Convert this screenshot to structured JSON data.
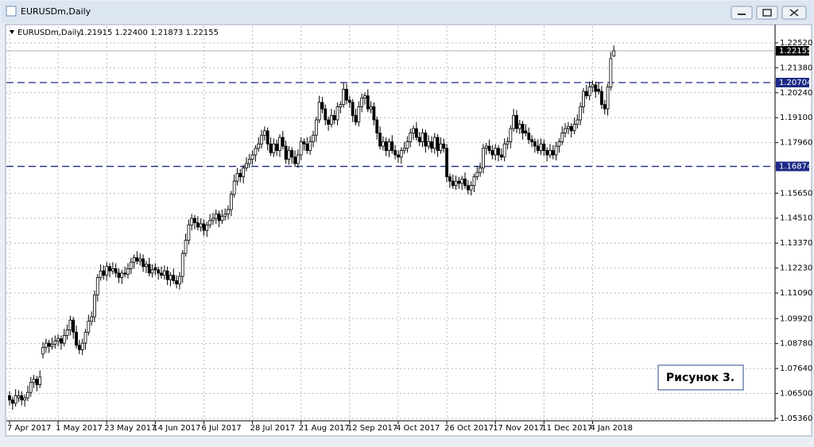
{
  "symbol": "EURUSDm,Daily",
  "ohlc_text": "1.21915 1.22400 1.21873 1.22155",
  "annotation": "Рисунок 3.",
  "chart_data": {
    "type": "candlestick",
    "up_color": "#ffffff",
    "down_color": "#000000",
    "outline_color": "#000000",
    "grid": true,
    "ylim": [
      1.0525,
      1.2328
    ],
    "yticks": [
      {
        "value": 1.2252,
        "label": "1.22520"
      },
      {
        "value": 1.2138,
        "label": "1.21380"
      },
      {
        "value": 1.2024,
        "label": "1.20240"
      },
      {
        "value": 1.191,
        "label": "1.19100"
      },
      {
        "value": 1.1796,
        "label": "1.17960"
      },
      {
        "value": 1.1565,
        "label": "1.15650"
      },
      {
        "value": 1.1451,
        "label": "1.14510"
      },
      {
        "value": 1.1337,
        "label": "1.13370"
      },
      {
        "value": 1.1223,
        "label": "1.12230"
      },
      {
        "value": 1.1109,
        "label": "1.11090"
      },
      {
        "value": 1.0992,
        "label": "1.09920"
      },
      {
        "value": 1.0878,
        "label": "1.08780"
      },
      {
        "value": 1.0764,
        "label": "1.07640"
      },
      {
        "value": 1.065,
        "label": "1.06500"
      },
      {
        "value": 1.0536,
        "label": "1.05360"
      }
    ],
    "levels": [
      {
        "value": 1.20704,
        "color": "#1c2a86"
      },
      {
        "value": 1.16874,
        "color": "#1c2a86"
      }
    ],
    "current_price_color": "#b0b0b0",
    "categories": [
      "7 Apr 2017",
      null,
      null,
      null,
      null,
      null,
      null,
      null,
      null,
      null,
      null,
      null,
      null,
      null,
      null,
      null,
      "1 May 2017",
      null,
      null,
      null,
      null,
      null,
      null,
      null,
      null,
      null,
      null,
      null,
      null,
      null,
      null,
      null,
      "23 May 2017",
      null,
      null,
      null,
      null,
      null,
      null,
      null,
      null,
      null,
      null,
      null,
      null,
      null,
      null,
      null,
      "14 Jun 2017",
      null,
      null,
      null,
      null,
      null,
      null,
      null,
      null,
      null,
      null,
      null,
      null,
      null,
      null,
      null,
      "6 Jul 2017",
      null,
      null,
      null,
      null,
      null,
      null,
      null,
      null,
      null,
      null,
      null,
      null,
      null,
      null,
      null,
      "28 Jul 2017",
      null,
      null,
      null,
      null,
      null,
      null,
      null,
      null,
      null,
      null,
      null,
      null,
      null,
      null,
      null,
      "21 Aug 2017",
      null,
      null,
      null,
      null,
      null,
      null,
      null,
      null,
      null,
      null,
      null,
      null,
      null,
      null,
      null,
      "12 Sep 2017",
      null,
      null,
      null,
      null,
      null,
      null,
      null,
      null,
      null,
      null,
      null,
      null,
      null,
      null,
      null,
      "4 Oct 2017",
      null,
      null,
      null,
      null,
      null,
      null,
      null,
      null,
      null,
      null,
      null,
      null,
      null,
      null,
      null,
      "26 Oct 2017",
      null,
      null,
      null,
      null,
      null,
      null,
      null,
      null,
      null,
      null,
      null,
      null,
      null,
      null,
      null,
      "17 Nov 2017",
      null,
      null,
      null,
      null,
      null,
      null,
      null,
      null,
      null,
      null,
      null,
      null,
      null,
      null,
      null,
      "11 Dec 2017",
      null,
      null,
      null,
      null,
      null,
      null,
      null,
      null,
      null,
      null,
      null,
      null,
      null,
      null,
      null,
      "4 Jan 2018",
      null,
      null,
      null,
      null,
      null,
      null,
      null
    ],
    "ohlc": [
      [
        1.064,
        1.066,
        1.0595,
        1.062
      ],
      [
        1.062,
        1.0635,
        1.0575,
        1.0605
      ],
      [
        1.0605,
        1.067,
        1.059,
        1.064
      ],
      [
        1.063,
        1.0665,
        1.061,
        1.064
      ],
      [
        1.064,
        1.066,
        1.0595,
        1.062
      ],
      [
        1.062,
        1.0645,
        1.059,
        1.063
      ],
      [
        1.063,
        1.0685,
        1.0615,
        1.0655
      ],
      [
        1.0655,
        1.0725,
        1.0635,
        1.07
      ],
      [
        1.07,
        1.0735,
        1.0675,
        1.0715
      ],
      [
        1.0715,
        1.073,
        1.066,
        1.069
      ],
      [
        1.069,
        1.0755,
        1.0675,
        1.0725
      ],
      [
        1.083,
        1.0885,
        1.081,
        1.086
      ],
      [
        1.086,
        1.09,
        1.0835,
        1.088
      ],
      [
        1.088,
        1.0895,
        1.0835,
        1.0865
      ],
      [
        1.0865,
        1.0905,
        1.085,
        1.0875
      ],
      [
        1.0875,
        1.0915,
        1.0855,
        1.089
      ],
      [
        1.089,
        1.092,
        1.0865,
        1.09
      ],
      [
        1.09,
        1.0915,
        1.085,
        1.088
      ],
      [
        1.088,
        1.0945,
        1.0865,
        1.0915
      ],
      [
        1.0915,
        1.0965,
        1.0895,
        1.094
      ],
      [
        1.094,
        1.1005,
        1.0915,
        1.0985
      ],
      [
        1.0985,
        1.1,
        1.09,
        1.093
      ],
      [
        1.093,
        1.096,
        1.0855,
        1.087
      ],
      [
        1.087,
        1.0895,
        1.083,
        1.085
      ],
      [
        1.085,
        1.09,
        1.0825,
        1.088
      ],
      [
        1.088,
        1.0945,
        1.085,
        1.093
      ],
      [
        1.093,
        1.101,
        1.0915,
        1.098
      ],
      [
        1.098,
        1.1025,
        1.096,
        1.1
      ],
      [
        1.1,
        1.112,
        1.0975,
        1.11
      ],
      [
        1.11,
        1.1195,
        1.107,
        1.118
      ],
      [
        1.118,
        1.124,
        1.1165,
        1.121
      ],
      [
        1.121,
        1.1235,
        1.117,
        1.119
      ],
      [
        1.119,
        1.125,
        1.1165,
        1.123
      ],
      [
        1.123,
        1.1245,
        1.118,
        1.121
      ],
      [
        1.121,
        1.125,
        1.1195,
        1.122
      ],
      [
        1.122,
        1.1245,
        1.118,
        1.12
      ],
      [
        1.12,
        1.122,
        1.1155,
        1.118
      ],
      [
        1.118,
        1.1215,
        1.115,
        1.12
      ],
      [
        1.12,
        1.123,
        1.118,
        1.1195
      ],
      [
        1.1195,
        1.1245,
        1.1175,
        1.122
      ],
      [
        1.122,
        1.127,
        1.1195,
        1.125
      ],
      [
        1.125,
        1.1285,
        1.122,
        1.127
      ],
      [
        1.127,
        1.13,
        1.124,
        1.1255
      ],
      [
        1.1255,
        1.129,
        1.1235,
        1.1265
      ],
      [
        1.1265,
        1.1285,
        1.1205,
        1.123
      ],
      [
        1.123,
        1.1255,
        1.12,
        1.124
      ],
      [
        1.124,
        1.127,
        1.1185,
        1.12
      ],
      [
        1.12,
        1.124,
        1.118,
        1.1215
      ],
      [
        1.1225,
        1.1245,
        1.119,
        1.1215
      ],
      [
        1.1215,
        1.123,
        1.117,
        1.12
      ],
      [
        1.12,
        1.123,
        1.1175,
        1.119
      ],
      [
        1.119,
        1.1235,
        1.117,
        1.121
      ],
      [
        1.121,
        1.123,
        1.1145,
        1.117
      ],
      [
        1.117,
        1.1205,
        1.114,
        1.119
      ],
      [
        1.119,
        1.122,
        1.115,
        1.1165
      ],
      [
        1.1165,
        1.119,
        1.113,
        1.115
      ],
      [
        1.115,
        1.1205,
        1.1125,
        1.1185
      ],
      [
        1.1185,
        1.1305,
        1.1155,
        1.129
      ],
      [
        1.129,
        1.138,
        1.1275,
        1.135
      ],
      [
        1.135,
        1.1445,
        1.133,
        1.142
      ],
      [
        1.142,
        1.147,
        1.1395,
        1.145
      ],
      [
        1.145,
        1.1465,
        1.14,
        1.143
      ],
      [
        1.143,
        1.146,
        1.1395,
        1.141
      ],
      [
        1.141,
        1.145,
        1.139,
        1.1425
      ],
      [
        1.1425,
        1.1445,
        1.137,
        1.1395
      ],
      [
        1.1395,
        1.1435,
        1.1365,
        1.142
      ],
      [
        1.142,
        1.147,
        1.1405,
        1.144
      ],
      [
        1.144,
        1.1475,
        1.142,
        1.145
      ],
      [
        1.145,
        1.149,
        1.1425,
        1.147
      ],
      [
        1.147,
        1.1485,
        1.141,
        1.144
      ],
      [
        1.144,
        1.149,
        1.1425,
        1.146
      ],
      [
        1.146,
        1.1495,
        1.144,
        1.147
      ],
      [
        1.147,
        1.151,
        1.1445,
        1.149
      ],
      [
        1.149,
        1.1575,
        1.146,
        1.156
      ],
      [
        1.156,
        1.165,
        1.1545,
        1.162
      ],
      [
        1.162,
        1.168,
        1.16,
        1.1655
      ],
      [
        1.1655,
        1.1675,
        1.1615,
        1.164
      ],
      [
        1.164,
        1.1695,
        1.161,
        1.168
      ],
      [
        1.168,
        1.173,
        1.1665,
        1.17
      ],
      [
        1.17,
        1.1745,
        1.168,
        1.172
      ],
      [
        1.172,
        1.176,
        1.1695,
        1.174
      ],
      [
        1.174,
        1.1785,
        1.171,
        1.177
      ],
      [
        1.177,
        1.182,
        1.1755,
        1.179
      ],
      [
        1.179,
        1.1855,
        1.177,
        1.183
      ],
      [
        1.183,
        1.187,
        1.1805,
        1.185
      ],
      [
        1.185,
        1.1865,
        1.176,
        1.179
      ],
      [
        1.179,
        1.182,
        1.1735,
        1.175
      ],
      [
        1.175,
        1.1815,
        1.173,
        1.179
      ],
      [
        1.179,
        1.181,
        1.1735,
        1.176
      ],
      [
        1.176,
        1.1835,
        1.173,
        1.182
      ],
      [
        1.182,
        1.185,
        1.1765,
        1.178
      ],
      [
        1.178,
        1.1805,
        1.17,
        1.172
      ],
      [
        1.172,
        1.178,
        1.1695,
        1.176
      ],
      [
        1.176,
        1.1775,
        1.17,
        1.173
      ],
      [
        1.173,
        1.176,
        1.1685,
        1.17
      ],
      [
        1.17,
        1.1765,
        1.168,
        1.174
      ],
      [
        1.174,
        1.182,
        1.1715,
        1.18
      ],
      [
        1.18,
        1.1815,
        1.176,
        1.179
      ],
      [
        1.179,
        1.182,
        1.1745,
        1.176
      ],
      [
        1.176,
        1.1825,
        1.174,
        1.18
      ],
      [
        1.18,
        1.185,
        1.1775,
        1.183
      ],
      [
        1.183,
        1.1915,
        1.18,
        1.19
      ],
      [
        1.19,
        1.201,
        1.1885,
        1.198
      ],
      [
        1.198,
        1.2005,
        1.193,
        1.195
      ],
      [
        1.195,
        1.197,
        1.1875,
        1.19
      ],
      [
        1.19,
        1.1915,
        1.185,
        1.188
      ],
      [
        1.188,
        1.195,
        1.1865,
        1.192
      ],
      [
        1.192,
        1.1945,
        1.188,
        1.19
      ],
      [
        1.19,
        1.198,
        1.1875,
        1.196
      ],
      [
        1.196,
        1.1985,
        1.193,
        1.197
      ],
      [
        1.197,
        1.207,
        1.1955,
        1.204
      ],
      [
        1.204,
        1.2065,
        1.197,
        1.199
      ],
      [
        1.199,
        1.201,
        1.1955,
        1.198
      ],
      [
        1.198,
        1.1995,
        1.189,
        1.192
      ],
      [
        1.192,
        1.195,
        1.1875,
        1.189
      ],
      [
        1.189,
        1.1985,
        1.187,
        1.196
      ],
      [
        1.196,
        1.202,
        1.1935,
        1.2
      ],
      [
        1.2,
        1.2025,
        1.197,
        1.201
      ],
      [
        1.201,
        1.204,
        1.1935,
        1.195
      ],
      [
        1.195,
        1.1985,
        1.193,
        1.196
      ],
      [
        1.196,
        1.198,
        1.1875,
        1.19
      ],
      [
        1.19,
        1.1915,
        1.181,
        1.184
      ],
      [
        1.184,
        1.187,
        1.1765,
        1.178
      ],
      [
        1.178,
        1.1825,
        1.176,
        1.18
      ],
      [
        1.18,
        1.182,
        1.1735,
        1.176
      ],
      [
        1.176,
        1.1815,
        1.173,
        1.18
      ],
      [
        1.18,
        1.183,
        1.1745,
        1.176
      ],
      [
        1.176,
        1.1785,
        1.172,
        1.174
      ],
      [
        1.174,
        1.176,
        1.1705,
        1.173
      ],
      [
        1.173,
        1.1775,
        1.17,
        1.176
      ],
      [
        1.176,
        1.18,
        1.1745,
        1.177
      ],
      [
        1.177,
        1.1825,
        1.175,
        1.18
      ],
      [
        1.18,
        1.186,
        1.1775,
        1.184
      ],
      [
        1.184,
        1.1875,
        1.181,
        1.186
      ],
      [
        1.186,
        1.189,
        1.1805,
        1.182
      ],
      [
        1.182,
        1.1845,
        1.178,
        1.18
      ],
      [
        1.18,
        1.186,
        1.1775,
        1.184
      ],
      [
        1.184,
        1.1855,
        1.175,
        1.178
      ],
      [
        1.178,
        1.183,
        1.1765,
        1.18
      ],
      [
        1.18,
        1.1825,
        1.175,
        1.177
      ],
      [
        1.177,
        1.184,
        1.1745,
        1.182
      ],
      [
        1.182,
        1.1835,
        1.173,
        1.176
      ],
      [
        1.176,
        1.182,
        1.1745,
        1.179
      ],
      [
        1.179,
        1.1815,
        1.175,
        1.177
      ],
      [
        1.177,
        1.179,
        1.1615,
        1.164
      ],
      [
        1.164,
        1.1655,
        1.159,
        1.162
      ],
      [
        1.162,
        1.165,
        1.1585,
        1.16
      ],
      [
        1.16,
        1.1645,
        1.158,
        1.162
      ],
      [
        1.162,
        1.164,
        1.1585,
        1.161
      ],
      [
        1.161,
        1.1645,
        1.158,
        1.163
      ],
      [
        1.163,
        1.166,
        1.1585,
        1.16
      ],
      [
        1.16,
        1.1625,
        1.156,
        1.158
      ],
      [
        1.158,
        1.162,
        1.1555,
        1.16
      ],
      [
        1.16,
        1.1655,
        1.157,
        1.164
      ],
      [
        1.164,
        1.169,
        1.1625,
        1.166
      ],
      [
        1.166,
        1.1705,
        1.164,
        1.168
      ],
      [
        1.168,
        1.179,
        1.1655,
        1.177
      ],
      [
        1.177,
        1.1795,
        1.174,
        1.178
      ],
      [
        1.178,
        1.181,
        1.1745,
        1.176
      ],
      [
        1.176,
        1.1785,
        1.172,
        1.174
      ],
      [
        1.174,
        1.179,
        1.1715,
        1.177
      ],
      [
        1.177,
        1.1785,
        1.171,
        1.174
      ],
      [
        1.174,
        1.177,
        1.1715,
        1.173
      ],
      [
        1.173,
        1.1815,
        1.171,
        1.179
      ],
      [
        1.179,
        1.182,
        1.1765,
        1.18
      ],
      [
        1.18,
        1.1875,
        1.177,
        1.186
      ],
      [
        1.186,
        1.195,
        1.1845,
        1.192
      ],
      [
        1.192,
        1.1945,
        1.184,
        1.186
      ],
      [
        1.186,
        1.19,
        1.1835,
        1.188
      ],
      [
        1.188,
        1.1895,
        1.181,
        1.184
      ],
      [
        1.185,
        1.188,
        1.1825,
        1.184
      ],
      [
        1.184,
        1.1865,
        1.179,
        1.181
      ],
      [
        1.181,
        1.183,
        1.1775,
        1.18
      ],
      [
        1.18,
        1.1815,
        1.175,
        1.178
      ],
      [
        1.178,
        1.181,
        1.1745,
        1.176
      ],
      [
        1.176,
        1.1815,
        1.174,
        1.179
      ],
      [
        1.179,
        1.181,
        1.1735,
        1.176
      ],
      [
        1.176,
        1.1775,
        1.171,
        1.174
      ],
      [
        1.174,
        1.179,
        1.1725,
        1.176
      ],
      [
        1.176,
        1.1785,
        1.172,
        1.174
      ],
      [
        1.174,
        1.18,
        1.1715,
        1.178
      ],
      [
        1.178,
        1.1815,
        1.175,
        1.18
      ],
      [
        1.18,
        1.187,
        1.1785,
        1.184
      ],
      [
        1.184,
        1.1885,
        1.182,
        1.186
      ],
      [
        1.186,
        1.189,
        1.1835,
        1.187
      ],
      [
        1.187,
        1.1885,
        1.182,
        1.185
      ],
      [
        1.185,
        1.191,
        1.1835,
        1.188
      ],
      [
        1.188,
        1.1925,
        1.186,
        1.19
      ],
      [
        1.19,
        1.198,
        1.1875,
        1.196
      ],
      [
        1.196,
        1.2045,
        1.193,
        1.203
      ],
      [
        1.203,
        1.206,
        1.1995,
        1.201
      ],
      [
        1.201,
        1.2075,
        1.199,
        1.205
      ],
      [
        1.205,
        1.208,
        1.2025,
        1.206
      ],
      [
        1.206,
        1.2075,
        1.2,
        1.203
      ],
      [
        1.204,
        1.207,
        1.2015,
        1.203
      ],
      [
        1.203,
        1.2055,
        1.195,
        1.197
      ],
      [
        1.197,
        1.199,
        1.1925,
        1.195
      ],
      [
        1.195,
        1.2065,
        1.192,
        1.205
      ],
      [
        1.205,
        1.221,
        1.2035,
        1.218
      ],
      [
        1.21915,
        1.224,
        1.21873,
        1.22155
      ]
    ]
  }
}
